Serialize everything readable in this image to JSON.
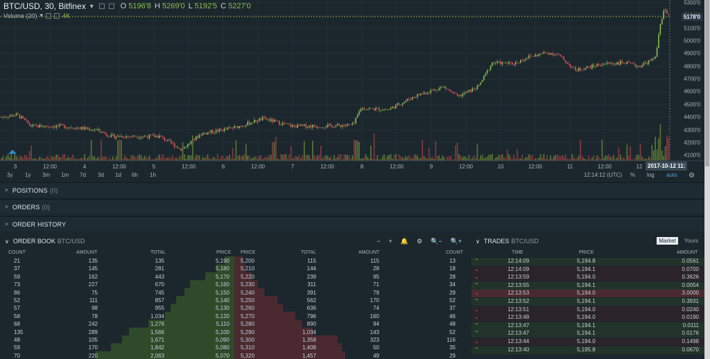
{
  "chart": {
    "symbol": "BTC/USD, 30, Bitfinex",
    "ohlc": [
      {
        "k": "O",
        "v": "5196'8"
      },
      {
        "k": "H",
        "v": "5269'0"
      },
      {
        "k": "L",
        "v": "5192'5"
      },
      {
        "k": "C",
        "v": "5227'0"
      }
    ],
    "volume_label": "Volume (20)",
    "volume_value": "4K",
    "last_price": "5178'0",
    "y_ticks": [
      "5300'0",
      "5200'0",
      "5100'0",
      "5000'0",
      "4900'0",
      "4800'0",
      "4700'0",
      "4600'0",
      "4500'0",
      "4400'0",
      "4300'0",
      "4200'0",
      "4100'0"
    ],
    "x_ticks": [
      "3",
      "12:00",
      "4",
      "12:00",
      "5",
      "12:00",
      "6",
      "12:00",
      "7",
      "12:00",
      "8",
      "12:00",
      "9",
      "12:00",
      "10",
      "12:00",
      "11",
      "12:00",
      "12"
    ],
    "cursor_time": "2017-10-12 11:",
    "timeframes": [
      "3y",
      "1y",
      "3m",
      "1m",
      "7d",
      "3d",
      "1d",
      "6h",
      "1h"
    ],
    "clock": "12:14:12 (UTC)",
    "scale_opts": [
      "%",
      "log",
      "auto"
    ],
    "colors": {
      "up": "#8cc152",
      "down": "#e0555c",
      "volume_up": "#5b7a34",
      "volume_down": "#8a3a40",
      "grid": "#233038"
    }
  },
  "chart_data": {
    "type": "line",
    "title": "BTC/USD, 30, Bitfinex",
    "x": [
      "3",
      "4",
      "5",
      "6",
      "7",
      "8",
      "9",
      "10",
      "11",
      "12"
    ],
    "series": [
      {
        "name": "BTC/USD",
        "values": [
          4400,
          4270,
          4150,
          4380,
          4300,
          4460,
          4650,
          4840,
          4780,
          5178
        ]
      }
    ],
    "ylim": [
      4080,
      5320
    ]
  },
  "panels": [
    {
      "title": "POSITIONS",
      "count": "(0)"
    },
    {
      "title": "ORDERS",
      "count": "(0)"
    },
    {
      "title": "ORDER HISTORY",
      "count": ""
    }
  ],
  "orderbook": {
    "title": "ORDER BOOK",
    "pair": "BTC/USD",
    "tools": [
      "−",
      "+",
      "🔔",
      "⚙",
      "🔍−",
      "🔍+"
    ],
    "cols": [
      "COUNT",
      "AMOUNT",
      "TOTAL",
      "PRICE",
      "PRICE",
      "TOTAL",
      "AMOUNT",
      "COUNT"
    ],
    "bids": [
      [
        "21",
        "135",
        "135",
        "5,190"
      ],
      [
        "37",
        "145",
        "281",
        "5,180"
      ],
      [
        "59",
        "162",
        "443",
        "5,170"
      ],
      [
        "73",
        "227",
        "670",
        "5,160"
      ],
      [
        "86",
        "75",
        "745",
        "5,150"
      ],
      [
        "52",
        "111",
        "857",
        "5,140"
      ],
      [
        "57",
        "98",
        "955",
        "5,130"
      ],
      [
        "58",
        "78",
        "1,034",
        "5,120"
      ],
      [
        "68",
        "242",
        "1,276",
        "5,110"
      ],
      [
        "135",
        "289",
        "1,566",
        "5,100"
      ],
      [
        "48",
        "105",
        "1,671",
        "5,090"
      ],
      [
        "59",
        "170",
        "1,842",
        "5,080"
      ],
      [
        "70",
        "220",
        "2,063",
        "5,070"
      ]
    ],
    "asks": [
      [
        "5,200",
        "115",
        "115",
        "13"
      ],
      [
        "5,210",
        "144",
        "28",
        "18"
      ],
      [
        "5,220",
        "239",
        "95",
        "28"
      ],
      [
        "5,230",
        "311",
        "71",
        "34"
      ],
      [
        "5,240",
        "391",
        "79",
        "29"
      ],
      [
        "5,250",
        "562",
        "170",
        "52"
      ],
      [
        "5,260",
        "636",
        "74",
        "37"
      ],
      [
        "5,270",
        "796",
        "160",
        "46"
      ],
      [
        "5,280",
        "890",
        "94",
        "48"
      ],
      [
        "5,290",
        "1,034",
        "143",
        "52"
      ],
      [
        "5,300",
        "1,358",
        "323",
        "116"
      ],
      [
        "5,310",
        "1,408",
        "50",
        "35"
      ],
      [
        "5,320",
        "1,457",
        "49",
        "29"
      ]
    ],
    "bid_depth": [
      0.07,
      0.13,
      0.21,
      0.32,
      0.36,
      0.42,
      0.46,
      0.5,
      0.62,
      0.76,
      0.81,
      0.89,
      1.0
    ],
    "ask_depth": [
      0.08,
      0.1,
      0.16,
      0.21,
      0.27,
      0.39,
      0.44,
      0.55,
      0.61,
      0.71,
      0.93,
      0.97,
      1.0
    ]
  },
  "trades": {
    "title": "TRADES",
    "pair": "BTC/USD",
    "tabs": [
      "Market",
      "Yours"
    ],
    "cols": [
      "TIME",
      "PRICE",
      "AMOUNT"
    ],
    "rows": [
      {
        "dir": "up",
        "time": "12:14:09",
        "price": "5,194.8",
        "amount": "0.0561"
      },
      {
        "dir": "dn",
        "time": "12:14:09",
        "price": "5,194.1",
        "amount": "0.0700"
      },
      {
        "dir": "dn",
        "time": "12:13:59",
        "price": "5,194.0",
        "amount": "0.3626"
      },
      {
        "dir": "up",
        "time": "12:13:55",
        "price": "5,194.1",
        "amount": "0.0054"
      },
      {
        "dir": "dn",
        "time": "12:13:53",
        "price": "5,194.0",
        "amount": "3.0000"
      },
      {
        "dir": "up",
        "time": "12:13:52",
        "price": "5,194.1",
        "amount": "0.3931"
      },
      {
        "dir": "dn",
        "time": "12:13:51",
        "price": "5,194.0",
        "amount": "0.0240"
      },
      {
        "dir": "dn",
        "time": "12:13:48",
        "price": "5,194.0",
        "amount": "0.0190"
      },
      {
        "dir": "up",
        "time": "12:13:47",
        "price": "5,194.1",
        "amount": "0.0111"
      },
      {
        "dir": "up",
        "time": "12:13:47",
        "price": "5,194.1",
        "amount": "0.0176"
      },
      {
        "dir": "dn",
        "time": "12:13:44",
        "price": "5,194.0",
        "amount": "0.1498"
      },
      {
        "dir": "up",
        "time": "12:13:40",
        "price": "5,195.8",
        "amount": "0.0670"
      }
    ]
  }
}
